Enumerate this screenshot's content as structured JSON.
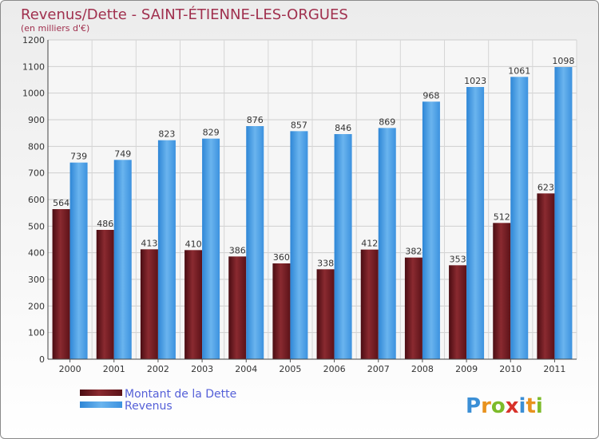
{
  "chart_data": {
    "type": "bar",
    "title": "Revenus/Dette - SAINT-ÉTIENNE-LES-ORGUES",
    "subtitle": "(en milliers d'€)",
    "categories": [
      "2000",
      "2001",
      "2002",
      "2003",
      "2004",
      "2005",
      "2006",
      "2007",
      "2008",
      "2009",
      "2010",
      "2011"
    ],
    "series": [
      {
        "name": "Montant de la Dette",
        "color": "#7a1e25",
        "values": [
          564,
          486,
          413,
          410,
          386,
          360,
          338,
          412,
          382,
          353,
          512,
          623
        ]
      },
      {
        "name": "Revenus",
        "color": "#4a9ee3",
        "values": [
          739,
          749,
          823,
          829,
          876,
          857,
          846,
          869,
          968,
          1023,
          1061,
          1098
        ]
      }
    ],
    "ylim": [
      0,
      1200
    ],
    "yticks": [
      0,
      100,
      200,
      300,
      400,
      500,
      600,
      700,
      800,
      900,
      1000,
      1100,
      1200
    ],
    "grid": true,
    "legend_position": "bottom-left"
  },
  "logo": {
    "letters": [
      {
        "char": "P",
        "color": "#3b8fd6"
      },
      {
        "char": "r",
        "color": "#e8921e"
      },
      {
        "char": "o",
        "color": "#7dbb2a"
      },
      {
        "char": "x",
        "color": "#d8322a"
      },
      {
        "char": "i",
        "color": "#3b8fd6"
      },
      {
        "char": "t",
        "color": "#e8921e"
      },
      {
        "char": "i",
        "color": "#7dbb2a"
      }
    ]
  }
}
